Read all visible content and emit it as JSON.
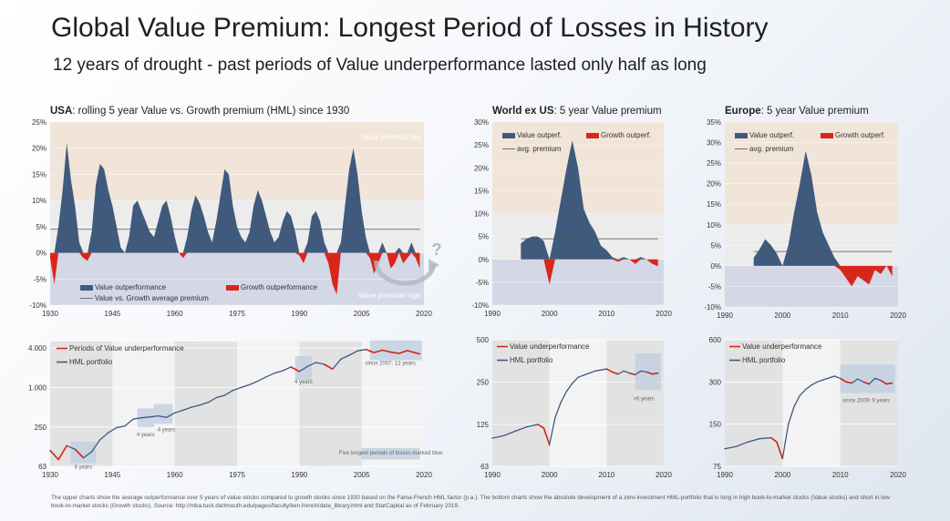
{
  "title": "Global Value Premium: Longest Period of Losses in History",
  "subtitle": "12 years of drought - past periods of Value underperformance lasted only half as long",
  "footnote": "The upper charts show the average outperformance over 5 years of value stocks compared to growth stocks since 1930 based on the Fama-French HML factor (p.a.). The bottom charts show the absolute development of a zero-investment HML-portfolio that is long in high book-to-market stocks (Value stocks) and short in low book-to-market stocks (Growth stocks). Source: http://mba.tuck.dartmouth.edu/pages/faculty/ken.french/data_library.html and StarCapital as of February 2019.",
  "colors": {
    "value": "#3f5a7c",
    "growth": "#d9261c",
    "bg_top": "#f1e4d8",
    "bg_mid": "#ececec",
    "bg_bot": "#d4d7e6",
    "shade": "#e2e2e2",
    "box": "#c3d0e0"
  },
  "chart_data": [
    {
      "id": "usa_premium",
      "type": "area",
      "title_bold": "USA",
      "title_rest": ": rolling 5 year Value vs. Growth premium (HML) since 1930",
      "xlim": [
        1930,
        2020
      ],
      "ylim": [
        -0.1,
        0.25
      ],
      "xticks": [
        "1930",
        "1945",
        "1960",
        "1975",
        "1990",
        "2005",
        "2020"
      ],
      "yticks": [
        "-10%",
        "-5%",
        "0%",
        "5%",
        "10%",
        "15%",
        "20%",
        "25%"
      ],
      "legend": [
        "Value outperformance",
        "Growth outperformance",
        "Value vs. Growth average premium"
      ],
      "zone_top_label": "Value potential low",
      "zone_bottom_label": "Value potential high",
      "average": 0.045,
      "question_mark": "?",
      "x": [
        1930,
        1931,
        1932,
        1933,
        1934,
        1935,
        1936,
        1937,
        1938,
        1939,
        1940,
        1941,
        1942,
        1943,
        1944,
        1945,
        1946,
        1947,
        1948,
        1949,
        1950,
        1951,
        1952,
        1953,
        1954,
        1955,
        1956,
        1957,
        1958,
        1959,
        1960,
        1961,
        1962,
        1963,
        1964,
        1965,
        1966,
        1967,
        1968,
        1969,
        1970,
        1971,
        1972,
        1973,
        1974,
        1975,
        1976,
        1977,
        1978,
        1979,
        1980,
        1981,
        1982,
        1983,
        1984,
        1985,
        1986,
        1987,
        1988,
        1989,
        1990,
        1991,
        1992,
        1993,
        1994,
        1995,
        1996,
        1997,
        1998,
        1999,
        2000,
        2001,
        2002,
        2003,
        2004,
        2005,
        2006,
        2007,
        2008,
        2009,
        2010,
        2011,
        2012,
        2013,
        2014,
        2015,
        2016,
        2017,
        2018,
        2019
      ],
      "y": [
        -0.01,
        -0.06,
        0.05,
        0.12,
        0.21,
        0.14,
        0.09,
        0.02,
        -0.01,
        -0.015,
        0.04,
        0.13,
        0.17,
        0.16,
        0.12,
        0.09,
        0.05,
        0.01,
        0.0,
        0.03,
        0.09,
        0.1,
        0.08,
        0.06,
        0.04,
        0.03,
        0.06,
        0.09,
        0.1,
        0.07,
        0.03,
        0.0,
        -0.01,
        0.03,
        0.08,
        0.11,
        0.095,
        0.07,
        0.04,
        0.02,
        0.06,
        0.11,
        0.16,
        0.15,
        0.09,
        0.05,
        0.03,
        0.02,
        0.04,
        0.09,
        0.12,
        0.1,
        0.07,
        0.04,
        0.02,
        0.03,
        0.06,
        0.08,
        0.07,
        0.04,
        -0.005,
        -0.02,
        0.02,
        0.07,
        0.08,
        0.06,
        0.02,
        -0.02,
        -0.06,
        -0.08,
        0.02,
        0.09,
        0.16,
        0.2,
        0.15,
        0.08,
        0.03,
        -0.01,
        -0.04,
        -0.02,
        0.02,
        0.0,
        -0.03,
        -0.02,
        0.01,
        -0.02,
        -0.01,
        0.02,
        -0.01,
        -0.03
      ]
    },
    {
      "id": "world_premium",
      "type": "area",
      "title_bold": "World ex US",
      "title_rest": ": 5 year Value premium",
      "xlim": [
        1990,
        2020
      ],
      "ylim": [
        -0.1,
        0.3
      ],
      "xticks": [
        "1990",
        "2000",
        "2010",
        "2020"
      ],
      "yticks": [
        "-10%",
        "-5%",
        "0%",
        "5%",
        "10%",
        "15%",
        "20%",
        "25%",
        "30%"
      ],
      "legend": [
        "Value outperf.",
        "Growth outperf.",
        "avg. premium"
      ],
      "average": 0.045,
      "x": [
        1995,
        1996,
        1997,
        1998,
        1999,
        2000,
        2001,
        2002,
        2003,
        2004,
        2005,
        2006,
        2007,
        2008,
        2009,
        2010,
        2011,
        2012,
        2013,
        2014,
        2015,
        2016,
        2017,
        2018,
        2019
      ],
      "y": [
        0.035,
        0.045,
        0.05,
        0.05,
        0.04,
        -0.055,
        0.06,
        0.13,
        0.2,
        0.26,
        0.2,
        0.11,
        0.08,
        0.06,
        0.03,
        0.02,
        0.005,
        -0.005,
        0.005,
        0.0,
        -0.01,
        0.005,
        0.0,
        -0.01,
        -0.015
      ]
    },
    {
      "id": "europe_premium",
      "type": "area",
      "title_bold": "Europe",
      "title_rest": ": 5 year Value premium",
      "xlim": [
        1990,
        2020
      ],
      "ylim": [
        -0.1,
        0.35
      ],
      "xticks": [
        "1990",
        "2000",
        "2010",
        "2020"
      ],
      "yticks": [
        "-10%",
        "-5%",
        "0%",
        "5%",
        "10%",
        "15%",
        "20%",
        "25%",
        "30%",
        "35%"
      ],
      "legend": [
        "Value outperf.",
        "Growth outperf.",
        "avg. premium"
      ],
      "average": 0.035,
      "x": [
        1995,
        1996,
        1997,
        1998,
        1999,
        2000,
        2001,
        2002,
        2003,
        2004,
        2005,
        2006,
        2007,
        2008,
        2009,
        2010,
        2011,
        2012,
        2013,
        2014,
        2015,
        2016,
        2017,
        2018,
        2019
      ],
      "y": [
        0.02,
        0.04,
        0.065,
        0.05,
        0.03,
        0.0,
        0.05,
        0.13,
        0.2,
        0.28,
        0.22,
        0.13,
        0.08,
        0.05,
        0.02,
        -0.01,
        -0.03,
        -0.05,
        -0.025,
        -0.035,
        -0.045,
        -0.01,
        -0.02,
        0.0,
        -0.025
      ]
    },
    {
      "id": "usa_hml",
      "type": "line",
      "legend": [
        "Periods of Value underperformance",
        "HML portfolio"
      ],
      "xlim": [
        1930,
        2020
      ],
      "ylim_log": [
        63,
        5000
      ],
      "xticks": [
        "1930",
        "1945",
        "1960",
        "1975",
        "1990",
        "2005",
        "2020"
      ],
      "yticks": [
        "63",
        "250",
        "1.000",
        "4.000"
      ],
      "ytick_values": [
        63,
        250,
        1000,
        4000
      ],
      "box_labels": [
        "6 years",
        "4 years",
        "4 years",
        "4 years",
        "since 2007: 12 years"
      ],
      "note": "Five longest periods of losses marked blue",
      "x": [
        1930,
        1932,
        1934,
        1936,
        1938,
        1940,
        1942,
        1944,
        1946,
        1948,
        1950,
        1952,
        1954,
        1956,
        1958,
        1960,
        1962,
        1964,
        1966,
        1968,
        1970,
        1972,
        1974,
        1976,
        1978,
        1980,
        1982,
        1984,
        1986,
        1988,
        1990,
        1992,
        1994,
        1996,
        1998,
        2000,
        2002,
        2004,
        2006,
        2008,
        2010,
        2012,
        2014,
        2016,
        2018,
        2019
      ],
      "y": [
        110,
        80,
        130,
        115,
        85,
        105,
        160,
        205,
        245,
        260,
        330,
        345,
        355,
        370,
        350,
        410,
        450,
        500,
        540,
        590,
        700,
        760,
        900,
        1000,
        1100,
        1250,
        1450,
        1650,
        1800,
        2050,
        1750,
        2100,
        2400,
        2250,
        1900,
        2700,
        3100,
        3600,
        3800,
        3400,
        3700,
        3450,
        3300,
        3650,
        3350,
        3250
      ]
    },
    {
      "id": "world_hml",
      "type": "line",
      "legend": [
        "Value underperformance",
        "HML portfolio"
      ],
      "xlim": [
        1990,
        2020
      ],
      "ylim_log": [
        63,
        500
      ],
      "xticks": [
        "1990",
        "2000",
        "2010",
        "2020"
      ],
      "yticks": [
        "63",
        "125",
        "250",
        "500"
      ],
      "ytick_values": [
        63,
        125,
        250,
        500
      ],
      "box_labels": [
        ">6 years"
      ],
      "x": [
        1990,
        1992,
        1994,
        1996,
        1998,
        1999,
        2000,
        2001,
        2002,
        2003,
        2004,
        2005,
        2006,
        2007,
        2008,
        2009,
        2010,
        2011,
        2012,
        2013,
        2014,
        2015,
        2016,
        2017,
        2018,
        2019
      ],
      "y": [
        100,
        104,
        112,
        120,
        125,
        118,
        90,
        140,
        180,
        215,
        245,
        270,
        280,
        290,
        300,
        305,
        310,
        295,
        285,
        300,
        290,
        282,
        300,
        295,
        285,
        290
      ]
    },
    {
      "id": "europe_hml",
      "type": "line",
      "legend": [
        "Value underperformance",
        "HML portfolio"
      ],
      "xlim": [
        1990,
        2020
      ],
      "ylim_log": [
        75,
        600
      ],
      "xticks": [
        "1990",
        "2000",
        "2010",
        "2020"
      ],
      "yticks": [
        "75",
        "150",
        "300",
        "600"
      ],
      "ytick_values": [
        75,
        150,
        300,
        600
      ],
      "box_labels": [
        "since 2009: 9 years"
      ],
      "x": [
        1990,
        1992,
        1994,
        1996,
        1998,
        1999,
        2000,
        2001,
        2002,
        2003,
        2004,
        2005,
        2006,
        2007,
        2008,
        2009,
        2010,
        2011,
        2012,
        2013,
        2014,
        2015,
        2016,
        2017,
        2018,
        2019
      ],
      "y": [
        100,
        104,
        112,
        118,
        120,
        112,
        85,
        150,
        200,
        240,
        265,
        285,
        300,
        310,
        320,
        330,
        318,
        300,
        295,
        315,
        300,
        290,
        318,
        308,
        290,
        295
      ]
    }
  ]
}
